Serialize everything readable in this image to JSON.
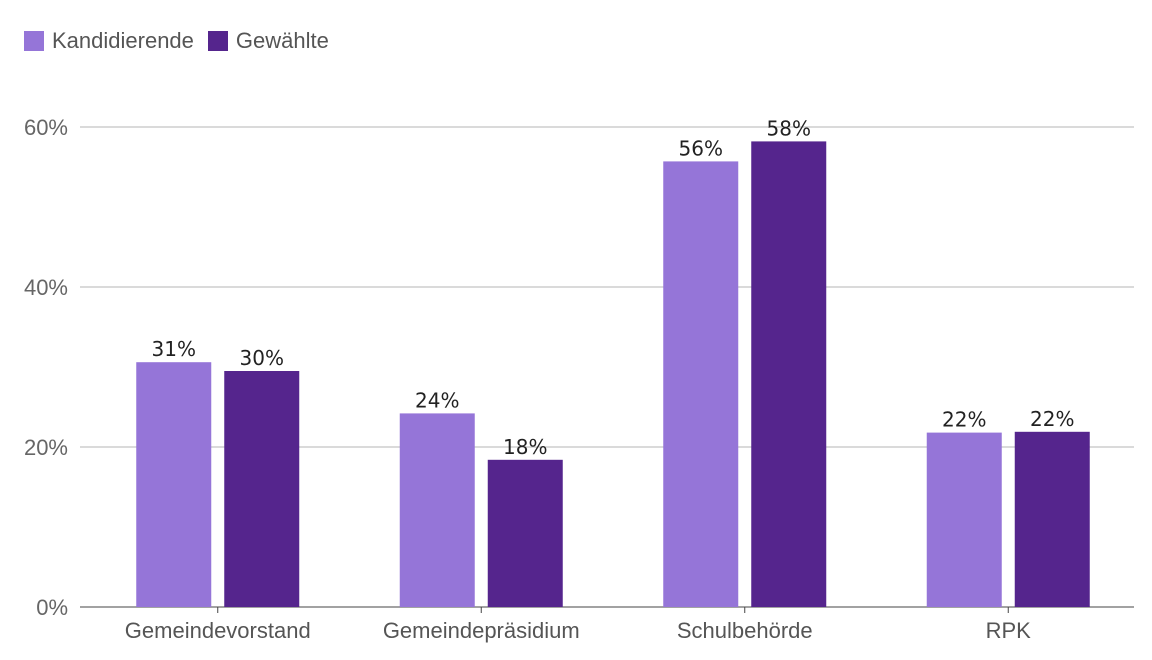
{
  "chart_data": {
    "type": "bar",
    "categories": [
      "Gemeindevorstand",
      "Gemeindepräsidium",
      "Schulbehörde",
      "RPK"
    ],
    "series": [
      {
        "name": "Kandidierende",
        "values": [
          30.6,
          24.2,
          55.7,
          21.8
        ],
        "labels": [
          "31%",
          "24%",
          "56%",
          "22%"
        ],
        "color": "#9575d8"
      },
      {
        "name": "Gewählte",
        "values": [
          29.5,
          18.4,
          58.2,
          21.9
        ],
        "labels": [
          "30%",
          "18%",
          "58%",
          "22%"
        ],
        "color": "#55258d"
      }
    ],
    "yticks": [
      "0%",
      "20%",
      "40%",
      "60%"
    ],
    "ytick_values": [
      0,
      20,
      40,
      60
    ],
    "ylim": [
      0,
      60
    ],
    "title": "",
    "xlabel": "",
    "ylabel": "",
    "legend_position": "top-left",
    "grid": true
  }
}
